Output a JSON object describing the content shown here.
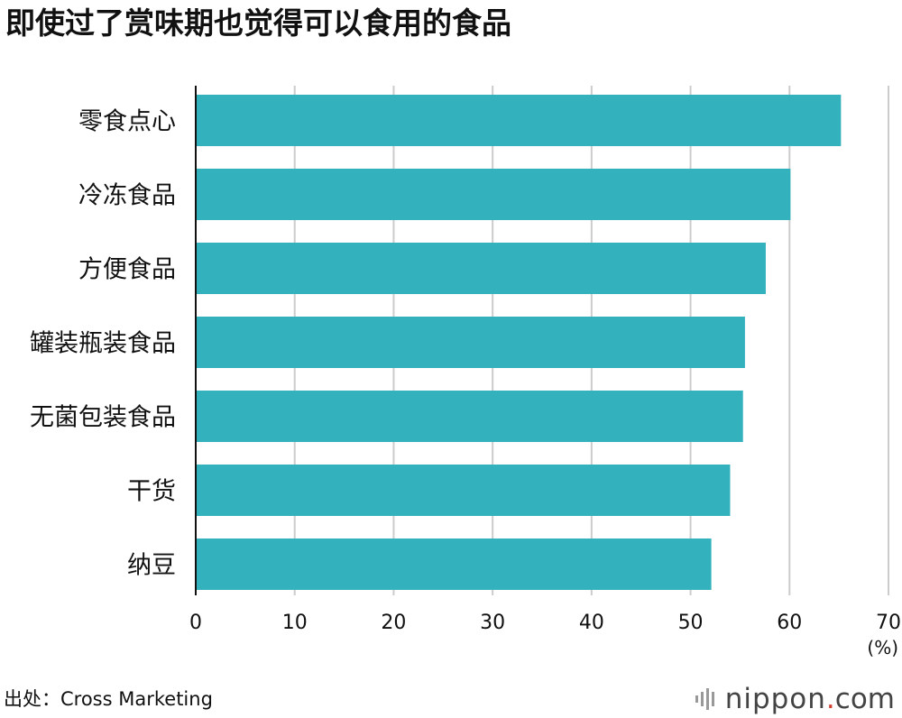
{
  "title": "即使过了赏味期也觉得可以食用的食品",
  "source": "出处：Cross Marketing",
  "logo": {
    "word": "nippon",
    "dot": ".",
    "tld": "com"
  },
  "colors": {
    "bar": "#33b1bd",
    "grid": "#cccccc",
    "axis": "#111111"
  },
  "chart_data": {
    "type": "bar",
    "orientation": "horizontal",
    "title": "即使过了赏味期也觉得可以食用的食品",
    "categories": [
      "零食点心",
      "冷冻食品",
      "方便食品",
      "罐装瓶装食品",
      "无菌包装食品",
      "干货",
      "纳豆"
    ],
    "values": [
      65.2,
      60.1,
      57.6,
      55.5,
      55.3,
      54.0,
      52.1
    ],
    "xlim": [
      0,
      70
    ],
    "xticks": [
      "0",
      "10",
      "20",
      "30",
      "40",
      "50",
      "60",
      "70"
    ],
    "unit": "(%)",
    "grid": true
  }
}
